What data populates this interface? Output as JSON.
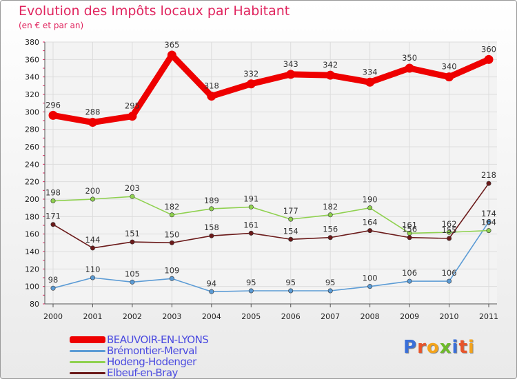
{
  "title": "Evolution des Impôts locaux par Habitant",
  "subtitle": "(en € et par an)",
  "brand": {
    "text": "Proxiti",
    "letters": [
      "P",
      "r",
      "o",
      "x",
      "i",
      "t",
      "i"
    ],
    "colors": [
      "#3a6fd8",
      "#e8542a",
      "#f3a31b",
      "#6dbb2a",
      "#3a6fd8",
      "#e8542a",
      "#f3a31b"
    ]
  },
  "chart_data": {
    "type": "line",
    "title": "Evolution des Impôts locaux par Habitant",
    "subtitle": "(en € et par an)",
    "xlabel": "",
    "ylabel": "",
    "categories": [
      "2000",
      "2001",
      "2002",
      "2003",
      "2004",
      "2005",
      "2006",
      "2007",
      "2008",
      "2009",
      "2010",
      "2011"
    ],
    "ylim": [
      80,
      380
    ],
    "yticks": [
      80,
      100,
      120,
      140,
      160,
      180,
      200,
      220,
      240,
      260,
      280,
      300,
      320,
      340,
      360,
      380
    ],
    "grid": true,
    "legend_position": "bottom-left",
    "series": [
      {
        "name": "BEAUVOIR-EN-LYONS",
        "color": "#ee0000",
        "label_color": "#3333cc",
        "emphasis": true,
        "values": [
          296,
          288,
          295,
          365,
          318,
          332,
          343,
          342,
          334,
          350,
          340,
          360
        ],
        "labels": [
          "296",
          "288",
          "295",
          "365",
          "318",
          "332",
          "343",
          "342",
          "334",
          "350",
          "340",
          "360"
        ]
      },
      {
        "name": "Brémontier-Merval",
        "color": "#5b9bd5",
        "label_color": "#3333cc",
        "emphasis": false,
        "values": [
          98,
          110,
          105,
          109,
          94,
          95,
          95,
          95,
          100,
          106,
          106,
          174
        ],
        "labels": [
          "98",
          "110",
          "105",
          "109",
          "94",
          "95",
          "95",
          "95",
          "100",
          "106",
          "106",
          "174"
        ]
      },
      {
        "name": "Hodeng-Hodenger",
        "color": "#8fd14f",
        "label_color": "#3333cc",
        "emphasis": false,
        "values": [
          198,
          200,
          203,
          182,
          189,
          191,
          177,
          182,
          190,
          161,
          162,
          164
        ],
        "labels": [
          "198",
          "200",
          "203",
          "182",
          "189",
          "191",
          "177",
          "182",
          "190",
          "161",
          "162",
          "164"
        ]
      },
      {
        "name": "Elbeuf-en-Bray",
        "color": "#6b1a1a",
        "label_color": "#3333cc",
        "emphasis": false,
        "values": [
          171,
          144,
          151,
          150,
          158,
          161,
          154,
          156,
          164,
          156,
          155,
          218
        ],
        "labels": [
          "171",
          "144",
          "151",
          "150",
          "158",
          "161",
          "154",
          "156",
          "164",
          "156",
          "155",
          "218"
        ]
      }
    ]
  }
}
